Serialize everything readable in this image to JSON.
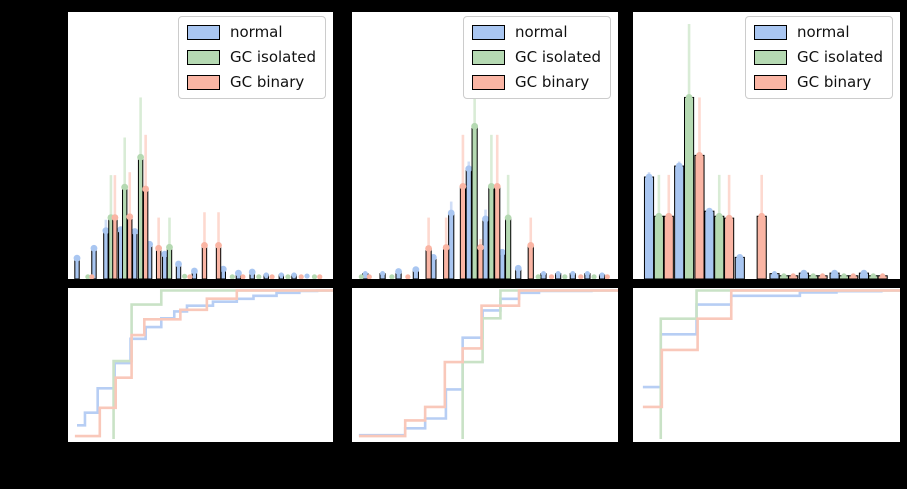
{
  "legend": {
    "items": [
      {
        "label": "normal",
        "color": "#a9c6f1"
      },
      {
        "label": "GC isolated",
        "color": "#b5d9b2"
      },
      {
        "label": "GC binary",
        "color": "#fab5a4"
      }
    ]
  },
  "series_style": {
    "normal": {
      "fill": "#a9c6f1",
      "err": "#d0def7",
      "step": "#b7cef4"
    },
    "GC isolated": {
      "fill": "#b5d9b2",
      "err": "#d9ecd6",
      "step": "#c9e2c6"
    },
    "GC binary": {
      "fill": "#fab5a4",
      "err": "#fdd9d0",
      "step": "#f9c8ba"
    }
  },
  "chart_data": [
    {
      "panel": "left",
      "type": "bar",
      "subplots": [
        "histogram with error bars",
        "empirical CDF (step)"
      ],
      "legend_entries": [
        "normal",
        "GC isolated",
        "GC binary"
      ],
      "bar_width_frac": 0.0165,
      "bars": [
        {
          "series": "normal",
          "x": 0.034,
          "h": 0.078,
          "err": 0.078
        },
        {
          "series": "normal",
          "x": 0.098,
          "h": 0.115,
          "err": 0.115
        },
        {
          "series": "normal",
          "x": 0.143,
          "h": 0.181,
          "err": 0.222
        },
        {
          "series": "normal",
          "x": 0.199,
          "h": 0.185,
          "err": 0.185
        },
        {
          "series": "normal",
          "x": 0.252,
          "h": 0.178,
          "err": 0.178
        },
        {
          "series": "normal",
          "x": 0.308,
          "h": 0.13,
          "err": 0.13
        },
        {
          "series": "normal",
          "x": 0.365,
          "h": 0.093,
          "err": 0.093
        },
        {
          "series": "normal",
          "x": 0.417,
          "h": 0.056,
          "err": 0.056
        },
        {
          "series": "normal",
          "x": 0.477,
          "h": 0.03,
          "err": 0.03
        },
        {
          "series": "normal",
          "x": 0.586,
          "h": 0.037,
          "err": 0.037
        },
        {
          "series": "normal",
          "x": 0.643,
          "h": 0.022,
          "err": 0.022
        },
        {
          "series": "normal",
          "x": 0.695,
          "h": 0.026,
          "err": 0.026
        },
        {
          "series": "normal",
          "x": 0.748,
          "h": 0.015,
          "err": 0.015
        },
        {
          "series": "normal",
          "x": 0.805,
          "h": 0.015,
          "err": 0.015
        },
        {
          "series": "normal",
          "x": 0.853,
          "h": 0.015,
          "err": 0.015
        },
        {
          "series": "normal",
          "x": 0.902,
          "h": 0.011,
          "err": 0.011
        },
        {
          "series": "GC isolated",
          "x": 0.075,
          "h": 0.008,
          "err": 0.008
        },
        {
          "series": "GC isolated",
          "x": 0.162,
          "h": 0.23,
          "err": 0.389
        },
        {
          "series": "GC isolated",
          "x": 0.214,
          "h": 0.344,
          "err": 0.53
        },
        {
          "series": "GC isolated",
          "x": 0.274,
          "h": 0.456,
          "err": 0.68
        },
        {
          "series": "GC isolated",
          "x": 0.383,
          "h": 0.119,
          "err": 0.23
        },
        {
          "series": "GC isolated",
          "x": 0.44,
          "h": 0.01,
          "err": 0.01
        },
        {
          "series": "GC isolated",
          "x": 0.62,
          "h": 0.008,
          "err": 0.008
        },
        {
          "series": "GC isolated",
          "x": 0.72,
          "h": 0.008,
          "err": 0.008
        },
        {
          "series": "GC isolated",
          "x": 0.83,
          "h": 0.008,
          "err": 0.008
        },
        {
          "series": "GC isolated",
          "x": 0.93,
          "h": 0.008,
          "err": 0.008
        },
        {
          "series": "GC binary",
          "x": 0.09,
          "h": 0.008,
          "err": 0.008
        },
        {
          "series": "GC binary",
          "x": 0.177,
          "h": 0.23,
          "err": 0.389
        },
        {
          "series": "GC binary",
          "x": 0.233,
          "h": 0.233,
          "err": 0.4
        },
        {
          "series": "GC binary",
          "x": 0.293,
          "h": 0.337,
          "err": 0.54
        },
        {
          "series": "GC binary",
          "x": 0.342,
          "h": 0.115,
          "err": 0.23
        },
        {
          "series": "GC binary",
          "x": 0.46,
          "h": 0.008,
          "err": 0.008
        },
        {
          "series": "GC binary",
          "x": 0.515,
          "h": 0.126,
          "err": 0.25
        },
        {
          "series": "GC binary",
          "x": 0.568,
          "h": 0.126,
          "err": 0.25
        },
        {
          "series": "GC binary",
          "x": 0.66,
          "h": 0.008,
          "err": 0.008
        },
        {
          "series": "GC binary",
          "x": 0.77,
          "h": 0.008,
          "err": 0.008
        },
        {
          "series": "GC binary",
          "x": 0.88,
          "h": 0.008,
          "err": 0.008
        },
        {
          "series": "GC binary",
          "x": 0.95,
          "h": 0.008,
          "err": 0.008
        }
      ],
      "cdf_steps": {
        "normal": [
          [
            0.034,
            0.092
          ],
          [
            0.064,
            0.177
          ],
          [
            0.112,
            0.341
          ],
          [
            0.176,
            0.511
          ],
          [
            0.236,
            0.675
          ],
          [
            0.293,
            0.754
          ],
          [
            0.352,
            0.813
          ],
          [
            0.401,
            0.859
          ],
          [
            0.449,
            0.898
          ],
          [
            0.547,
            0.925
          ],
          [
            0.637,
            0.944
          ],
          [
            0.7,
            0.964
          ],
          [
            0.787,
            0.984
          ],
          [
            0.873,
            0.997
          ],
          [
            0.94,
            1.0
          ]
        ],
        "GC isolated": [
          [
            0.172,
            0.0
          ],
          [
            0.172,
            0.525
          ],
          [
            0.24,
            0.905
          ],
          [
            0.352,
            1.0
          ]
        ],
        "GC binary": [
          [
            0.026,
            0.02
          ],
          [
            0.12,
            0.21
          ],
          [
            0.18,
            0.413
          ],
          [
            0.24,
            0.7
          ],
          [
            0.288,
            0.806
          ],
          [
            0.424,
            0.87
          ],
          [
            0.524,
            0.945
          ],
          [
            0.637,
            1.0
          ]
        ]
      }
    },
    {
      "panel": "middle",
      "type": "bar",
      "subplots": [
        "histogram with error bars",
        "empirical CDF (step)"
      ],
      "legend_entries": [
        "normal",
        "GC isolated",
        "GC binary"
      ],
      "bar_width_frac": 0.0194,
      "bars": [
        {
          "series": "normal",
          "x": 0.05,
          "h": 0.02,
          "err": 0.02
        },
        {
          "series": "normal",
          "x": 0.115,
          "h": 0.02,
          "err": 0.02
        },
        {
          "series": "normal",
          "x": 0.175,
          "h": 0.028,
          "err": 0.028
        },
        {
          "series": "normal",
          "x": 0.24,
          "h": 0.035,
          "err": 0.035
        },
        {
          "series": "normal",
          "x": 0.306,
          "h": 0.081,
          "err": 0.081
        },
        {
          "series": "normal",
          "x": 0.373,
          "h": 0.247,
          "err": 0.29
        },
        {
          "series": "normal",
          "x": 0.439,
          "h": 0.413,
          "err": 0.44
        },
        {
          "series": "normal",
          "x": 0.502,
          "h": 0.225,
          "err": 0.26
        },
        {
          "series": "normal",
          "x": 0.565,
          "h": 0.1,
          "err": 0.1
        },
        {
          "series": "normal",
          "x": 0.625,
          "h": 0.04,
          "err": 0.04
        },
        {
          "series": "normal",
          "x": 0.72,
          "h": 0.02,
          "err": 0.02
        },
        {
          "series": "normal",
          "x": 0.775,
          "h": 0.02,
          "err": 0.02
        },
        {
          "series": "normal",
          "x": 0.83,
          "h": 0.02,
          "err": 0.02
        },
        {
          "series": "normal",
          "x": 0.885,
          "h": 0.02,
          "err": 0.02
        },
        {
          "series": "normal",
          "x": 0.94,
          "h": 0.015,
          "err": 0.015
        },
        {
          "series": "GC isolated",
          "x": 0.035,
          "h": 0.008,
          "err": 0.008
        },
        {
          "series": "GC isolated",
          "x": 0.15,
          "h": 0.008,
          "err": 0.008
        },
        {
          "series": "GC isolated",
          "x": 0.461,
          "h": 0.572,
          "err": 0.82
        },
        {
          "series": "GC isolated",
          "x": 0.524,
          "h": 0.347,
          "err": 0.54
        },
        {
          "series": "GC isolated",
          "x": 0.587,
          "h": 0.229,
          "err": 0.39
        },
        {
          "series": "GC isolated",
          "x": 0.7,
          "h": 0.008,
          "err": 0.008
        },
        {
          "series": "GC isolated",
          "x": 0.8,
          "h": 0.008,
          "err": 0.008
        },
        {
          "series": "GC isolated",
          "x": 0.91,
          "h": 0.008,
          "err": 0.008
        },
        {
          "series": "GC binary",
          "x": 0.065,
          "h": 0.008,
          "err": 0.008
        },
        {
          "series": "GC binary",
          "x": 0.21,
          "h": 0.008,
          "err": 0.008
        },
        {
          "series": "GC binary",
          "x": 0.288,
          "h": 0.114,
          "err": 0.23
        },
        {
          "series": "GC binary",
          "x": 0.354,
          "h": 0.118,
          "err": 0.23
        },
        {
          "series": "GC binary",
          "x": 0.417,
          "h": 0.347,
          "err": 0.54
        },
        {
          "series": "GC binary",
          "x": 0.483,
          "h": 0.118,
          "err": 0.15
        },
        {
          "series": "GC binary",
          "x": 0.546,
          "h": 0.347,
          "err": 0.54
        },
        {
          "series": "GC binary",
          "x": 0.672,
          "h": 0.126,
          "err": 0.23
        },
        {
          "series": "GC binary",
          "x": 0.75,
          "h": 0.008,
          "err": 0.008
        },
        {
          "series": "GC binary",
          "x": 0.86,
          "h": 0.008,
          "err": 0.008
        },
        {
          "series": "GC binary",
          "x": 0.96,
          "h": 0.008,
          "err": 0.008
        }
      ],
      "cdf_steps": {
        "normal": [
          [
            0.026,
            0.026
          ],
          [
            0.2,
            0.072
          ],
          [
            0.275,
            0.138
          ],
          [
            0.353,
            0.334
          ],
          [
            0.416,
            0.682
          ],
          [
            0.491,
            0.866
          ],
          [
            0.558,
            0.944
          ],
          [
            0.628,
            0.984
          ],
          [
            0.703,
            0.997
          ],
          [
            0.9,
            1.0
          ]
        ],
        "GC isolated": [
          [
            0.416,
            0.0
          ],
          [
            0.416,
            0.518
          ],
          [
            0.491,
            0.813
          ],
          [
            0.558,
            1.0
          ]
        ],
        "GC binary": [
          [
            0.026,
            0.02
          ],
          [
            0.2,
            0.125
          ],
          [
            0.275,
            0.216
          ],
          [
            0.349,
            0.518
          ],
          [
            0.416,
            0.61
          ],
          [
            0.487,
            0.898
          ],
          [
            0.628,
            1.0
          ]
        ]
      }
    },
    {
      "panel": "right",
      "type": "bar",
      "subplots": [
        "histogram with error bars",
        "empirical CDF (step)"
      ],
      "legend_entries": [
        "normal",
        "GC isolated",
        "GC binary"
      ],
      "bar_width_frac": 0.0342,
      "bars": [
        {
          "series": "normal",
          "x": 0.06,
          "h": 0.382,
          "err": 0.4
        },
        {
          "series": "normal",
          "x": 0.173,
          "h": 0.423,
          "err": 0.44
        },
        {
          "series": "normal",
          "x": 0.286,
          "h": 0.254,
          "err": 0.254
        },
        {
          "series": "normal",
          "x": 0.4,
          "h": 0.081,
          "err": 0.081
        },
        {
          "series": "normal",
          "x": 0.53,
          "h": 0.02,
          "err": 0.02
        },
        {
          "series": "normal",
          "x": 0.64,
          "h": 0.022,
          "err": 0.022
        },
        {
          "series": "normal",
          "x": 0.755,
          "h": 0.022,
          "err": 0.022
        },
        {
          "series": "normal",
          "x": 0.865,
          "h": 0.022,
          "err": 0.022
        },
        {
          "series": "GC isolated",
          "x": 0.097,
          "h": 0.235,
          "err": 0.39
        },
        {
          "series": "GC isolated",
          "x": 0.21,
          "h": 0.68,
          "err": 0.955
        },
        {
          "series": "GC isolated",
          "x": 0.323,
          "h": 0.235,
          "err": 0.39
        },
        {
          "series": "GC isolated",
          "x": 0.565,
          "h": 0.012,
          "err": 0.012
        },
        {
          "series": "GC isolated",
          "x": 0.675,
          "h": 0.012,
          "err": 0.012
        },
        {
          "series": "GC isolated",
          "x": 0.79,
          "h": 0.012,
          "err": 0.012
        },
        {
          "series": "GC isolated",
          "x": 0.9,
          "h": 0.012,
          "err": 0.012
        },
        {
          "series": "GC binary",
          "x": 0.134,
          "h": 0.235,
          "err": 0.39
        },
        {
          "series": "GC binary",
          "x": 0.249,
          "h": 0.463,
          "err": 0.68
        },
        {
          "series": "GC binary",
          "x": 0.36,
          "h": 0.228,
          "err": 0.39
        },
        {
          "series": "GC binary",
          "x": 0.482,
          "h": 0.235,
          "err": 0.39
        },
        {
          "series": "GC binary",
          "x": 0.6,
          "h": 0.012,
          "err": 0.012
        },
        {
          "series": "GC binary",
          "x": 0.71,
          "h": 0.012,
          "err": 0.012
        },
        {
          "series": "GC binary",
          "x": 0.825,
          "h": 0.012,
          "err": 0.012
        },
        {
          "series": "GC binary",
          "x": 0.935,
          "h": 0.012,
          "err": 0.012
        }
      ],
      "cdf_steps": {
        "normal": [
          [
            0.037,
            0.35
          ],
          [
            0.104,
            0.705
          ],
          [
            0.238,
            0.905
          ],
          [
            0.368,
            0.964
          ],
          [
            0.625,
            0.987
          ],
          [
            0.762,
            0.995
          ],
          [
            0.93,
            1.0
          ]
        ],
        "GC isolated": [
          [
            0.104,
            0.0
          ],
          [
            0.104,
            0.81
          ],
          [
            0.238,
            1.0
          ]
        ],
        "GC binary": [
          [
            0.037,
            0.216
          ],
          [
            0.108,
            0.6
          ],
          [
            0.242,
            0.81
          ],
          [
            0.368,
            1.0
          ]
        ]
      }
    }
  ]
}
